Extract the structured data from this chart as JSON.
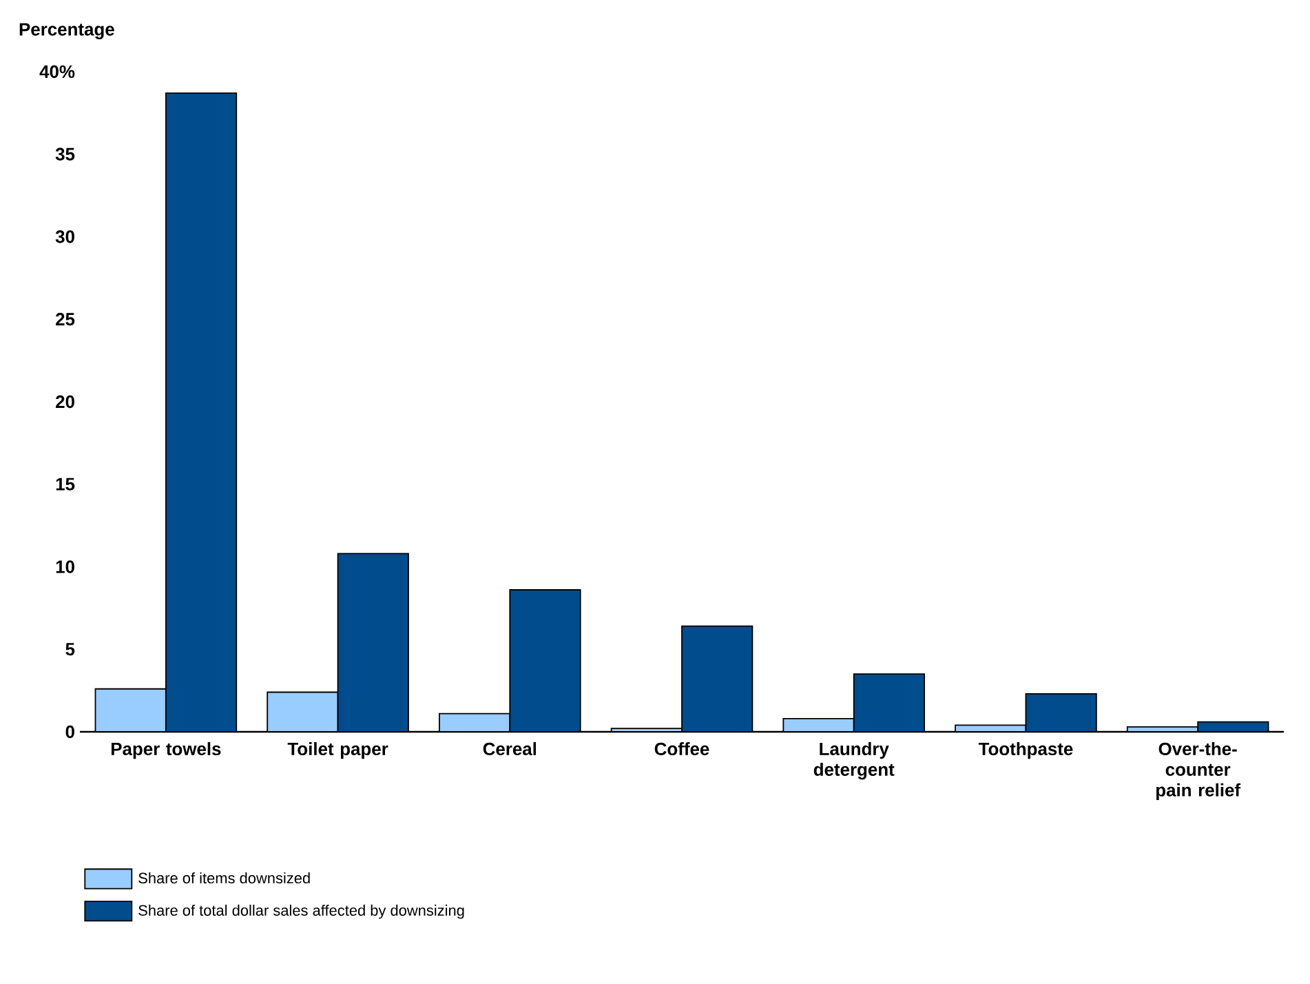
{
  "chart_data": {
    "type": "bar",
    "ylabel": "Percentage",
    "categories": [
      "Paper towels",
      "Toilet paper",
      "Cereal",
      "Coffee",
      "Laundry detergent",
      "Toothpaste",
      "Over-the-counter pain relief"
    ],
    "series": [
      {
        "name": "Share of items downsized",
        "color": "#99ccff",
        "values": [
          2.6,
          2.4,
          1.1,
          0.2,
          0.8,
          0.4,
          0.3
        ]
      },
      {
        "name": "Share of total dollar sales affected by downsizing",
        "color": "#004c8c",
        "values": [
          38.7,
          10.8,
          8.6,
          6.4,
          3.5,
          2.3,
          0.6
        ]
      }
    ],
    "ylim": [
      0,
      40
    ],
    "yticks": [
      0,
      5,
      10,
      15,
      20,
      25,
      30,
      35,
      {
        "value": 40,
        "label": "40%"
      }
    ],
    "grid": false,
    "legend": "bottom"
  }
}
